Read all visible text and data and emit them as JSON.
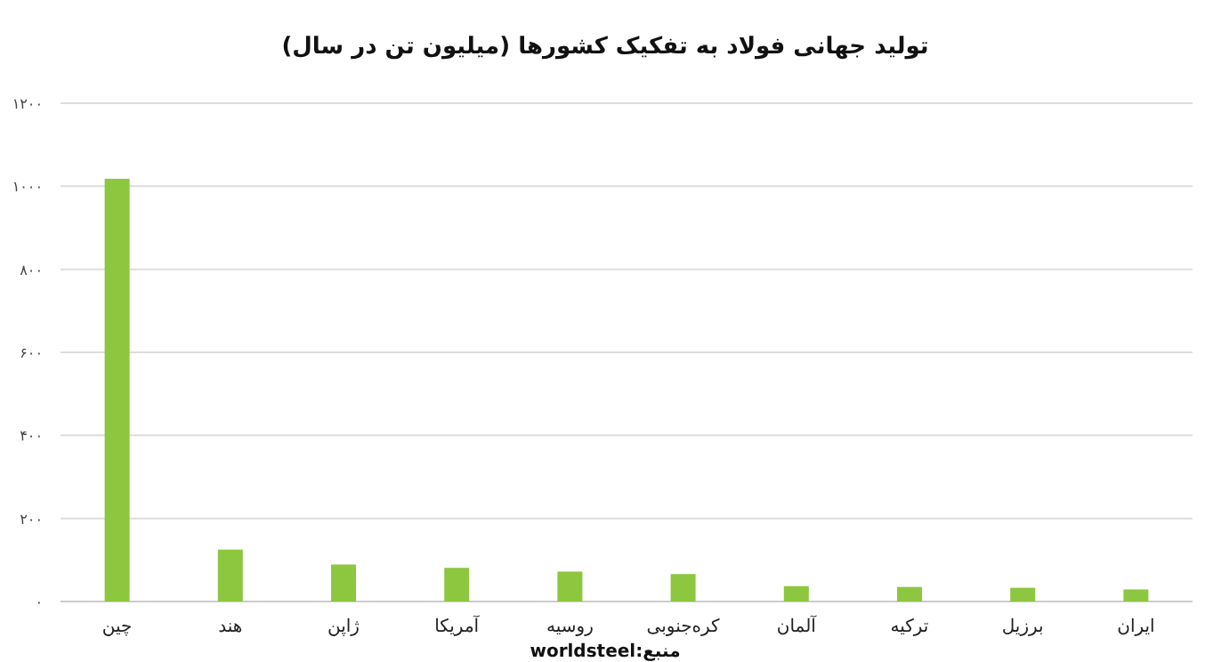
{
  "chart_data": {
    "type": "bar",
    "title": "تولید جهانی  فولاد به تفکیک کشورها (میلیون تن در سال)",
    "categories": [
      "چین",
      "هند",
      "ژاپن",
      "آمریکا",
      "روسیه",
      "کره‌جنوبی",
      "آلمان",
      "ترکیه",
      "برزیل",
      "ایران"
    ],
    "values": [
      1018,
      125,
      89,
      81,
      72,
      66,
      37,
      35,
      33,
      29
    ],
    "color": "#8dc63f",
    "ylim": [
      0,
      1200
    ],
    "yticks": [
      {
        "value": 0,
        "label": "۰"
      },
      {
        "value": 200,
        "label": "۲۰۰"
      },
      {
        "value": 400,
        "label": "۴۰۰"
      },
      {
        "value": 600,
        "label": "۶۰۰"
      },
      {
        "value": 800,
        "label": "۸۰۰"
      },
      {
        "value": 1000,
        "label": "۱۰۰۰"
      },
      {
        "value": 1200,
        "label": "۱۲۰۰"
      }
    ],
    "grid": "y",
    "annotations": [
      "منبع:worldsteel"
    ]
  }
}
